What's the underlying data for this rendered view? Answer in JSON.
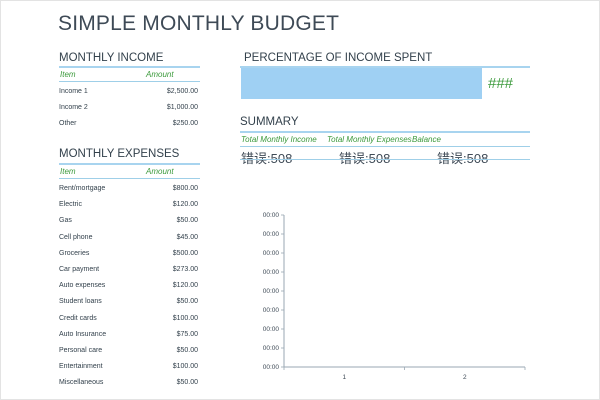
{
  "title": "SIMPLE MONTHLY BUDGET",
  "income": {
    "heading": "MONTHLY INCOME",
    "col_item": "Item",
    "col_amount": "Amount",
    "rows": [
      {
        "item": "Income 1",
        "amount": "$2,500.00"
      },
      {
        "item": "Income 2",
        "amount": "$1,000.00"
      },
      {
        "item": "Other",
        "amount": "$250.00"
      }
    ]
  },
  "expenses": {
    "heading": "MONTHLY EXPENSES",
    "col_item": "Item",
    "col_amount": "Amount",
    "rows": [
      {
        "item": "Rent/mortgage",
        "amount": "$800.00"
      },
      {
        "item": "Electric",
        "amount": "$120.00"
      },
      {
        "item": "Gas",
        "amount": "$50.00"
      },
      {
        "item": "Cell phone",
        "amount": "$45.00"
      },
      {
        "item": "Groceries",
        "amount": "$500.00"
      },
      {
        "item": "Car payment",
        "amount": "$273.00"
      },
      {
        "item": "Auto expenses",
        "amount": "$120.00"
      },
      {
        "item": "Student loans",
        "amount": "$50.00"
      },
      {
        "item": "Credit cards",
        "amount": "$100.00"
      },
      {
        "item": "Auto Insurance",
        "amount": "$75.00"
      },
      {
        "item": "Personal care",
        "amount": "$50.00"
      },
      {
        "item": "Entertainment",
        "amount": "$100.00"
      },
      {
        "item": "Miscellaneous",
        "amount": "$50.00"
      }
    ]
  },
  "percentage": {
    "heading": "PERCENTAGE OF INCOME SPENT",
    "value": "###",
    "bar_color": "#9fd0f3"
  },
  "summary": {
    "heading": "SUMMARY",
    "col_total_income": "Total Monthly Income",
    "col_total_expenses": "Total Monthly Expenses",
    "col_balance": "Balance",
    "total_income": "错误:508",
    "total_expenses": "错误:508",
    "balance": "错误:508"
  },
  "chart_data": {
    "type": "bar",
    "categories": [
      "1",
      "2"
    ],
    "y_ticks": [
      "00:00",
      "00:00",
      "00:00",
      "00:00",
      "00:00",
      "00:00",
      "00:00",
      "00:00",
      "00:00"
    ],
    "series": [],
    "title": "",
    "xlabel": "",
    "ylabel": ""
  },
  "colors": {
    "accent_green": "#3c9a3c",
    "rule_blue": "#9fcfe8",
    "text": "#3e4a56"
  }
}
